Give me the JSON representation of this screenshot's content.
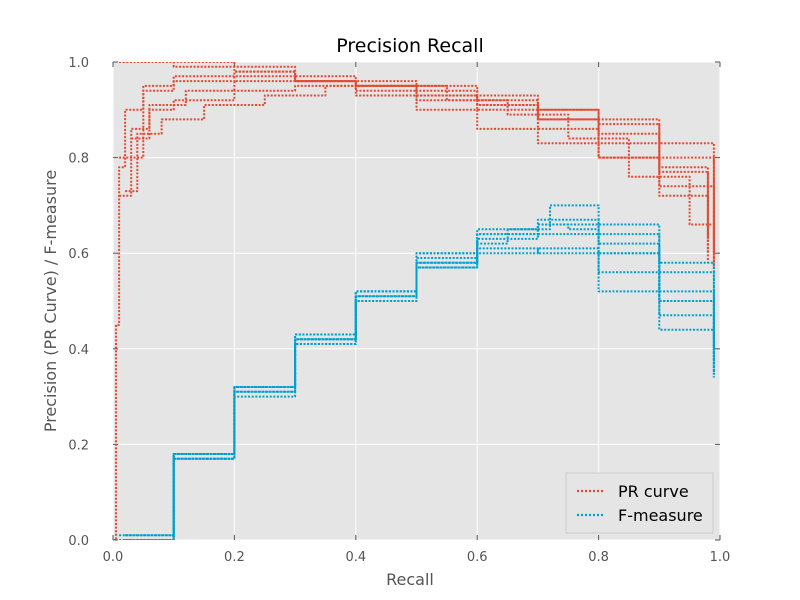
{
  "chart_data": {
    "type": "line",
    "title": "Precision Recall",
    "xlabel": "Recall",
    "ylabel": "Precision (PR Curve) / F-measure",
    "xlim": [
      0,
      1
    ],
    "ylim": [
      0,
      1
    ],
    "xticks": [
      "0.0",
      "0.2",
      "0.4",
      "0.6",
      "0.8",
      "1.0"
    ],
    "yticks": [
      "0.0",
      "0.2",
      "0.4",
      "0.6",
      "0.8",
      "1.0"
    ],
    "grid": true,
    "legend_position": "lower-right",
    "line_style": "dotted",
    "series": [
      {
        "name": "PR curve",
        "color": "#e24a33",
        "curves": [
          [
            [
              0.0,
              0.0
            ],
            [
              0.005,
              0.45
            ],
            [
              0.01,
              0.78
            ],
            [
              0.02,
              0.9
            ],
            [
              0.05,
              0.95
            ],
            [
              0.1,
              0.97
            ],
            [
              0.2,
              0.98
            ],
            [
              0.3,
              0.96
            ],
            [
              0.4,
              0.95
            ],
            [
              0.5,
              0.93
            ],
            [
              0.6,
              0.91
            ],
            [
              0.7,
              0.88
            ],
            [
              0.8,
              0.85
            ],
            [
              0.9,
              0.78
            ],
            [
              0.98,
              0.6
            ]
          ],
          [
            [
              0.01,
              1.0
            ],
            [
              0.05,
              1.0
            ],
            [
              0.1,
              0.99
            ],
            [
              0.2,
              0.98
            ],
            [
              0.3,
              0.97
            ],
            [
              0.4,
              0.95
            ],
            [
              0.5,
              0.93
            ],
            [
              0.6,
              0.9
            ],
            [
              0.7,
              0.86
            ],
            [
              0.8,
              0.8
            ],
            [
              0.9,
              0.72
            ],
            [
              0.98,
              0.58
            ]
          ],
          [
            [
              0.01,
              0.72
            ],
            [
              0.03,
              0.86
            ],
            [
              0.06,
              0.9
            ],
            [
              0.1,
              0.92
            ],
            [
              0.2,
              0.94
            ],
            [
              0.3,
              0.95
            ],
            [
              0.4,
              0.96
            ],
            [
              0.5,
              0.95
            ],
            [
              0.6,
              0.93
            ],
            [
              0.7,
              0.9
            ],
            [
              0.8,
              0.87
            ],
            [
              0.9,
              0.8
            ],
            [
              0.99,
              0.57
            ]
          ],
          [
            [
              0.02,
              0.73
            ],
            [
              0.04,
              0.85
            ],
            [
              0.08,
              0.88
            ],
            [
              0.15,
              0.91
            ],
            [
              0.25,
              0.93
            ],
            [
              0.35,
              0.95
            ],
            [
              0.45,
              0.95
            ],
            [
              0.55,
              0.92
            ],
            [
              0.65,
              0.89
            ],
            [
              0.75,
              0.84
            ],
            [
              0.85,
              0.76
            ],
            [
              0.95,
              0.66
            ],
            [
              0.99,
              0.56
            ]
          ],
          [
            [
              0.01,
              1.0
            ],
            [
              0.1,
              1.0
            ],
            [
              0.2,
              0.99
            ],
            [
              0.3,
              0.96
            ],
            [
              0.4,
              0.93
            ],
            [
              0.5,
              0.92
            ],
            [
              0.6,
              0.91
            ],
            [
              0.7,
              0.9
            ],
            [
              0.8,
              0.88
            ],
            [
              0.9,
              0.83
            ],
            [
              0.99,
              0.63
            ]
          ],
          [
            [
              0.03,
              0.84
            ],
            [
              0.06,
              0.91
            ],
            [
              0.12,
              0.94
            ],
            [
              0.2,
              0.96
            ],
            [
              0.3,
              0.96
            ],
            [
              0.4,
              0.94
            ],
            [
              0.5,
              0.9
            ],
            [
              0.6,
              0.86
            ],
            [
              0.7,
              0.83
            ],
            [
              0.8,
              0.8
            ],
            [
              0.9,
              0.74
            ],
            [
              0.99,
              0.6
            ]
          ],
          [
            [
              0.01,
              0.8
            ],
            [
              0.05,
              0.94
            ],
            [
              0.1,
              0.96
            ],
            [
              0.2,
              0.97
            ],
            [
              0.3,
              0.96
            ],
            [
              0.4,
              0.95
            ],
            [
              0.5,
              0.94
            ],
            [
              0.6,
              0.92
            ],
            [
              0.7,
              0.88
            ],
            [
              0.8,
              0.83
            ],
            [
              0.9,
              0.77
            ],
            [
              0.98,
              0.63
            ]
          ]
        ]
      },
      {
        "name": "F-measure",
        "color": "#00a0cc",
        "curves": [
          [
            [
              0.01,
              0.0
            ],
            [
              0.1,
              0.18
            ],
            [
              0.2,
              0.32
            ],
            [
              0.3,
              0.43
            ],
            [
              0.4,
              0.52
            ],
            [
              0.5,
              0.59
            ],
            [
              0.6,
              0.64
            ],
            [
              0.7,
              0.66
            ],
            [
              0.75,
              0.65
            ],
            [
              0.8,
              0.6
            ],
            [
              0.9,
              0.5
            ],
            [
              0.99,
              0.34
            ]
          ],
          [
            [
              0.02,
              0.0
            ],
            [
              0.1,
              0.17
            ],
            [
              0.2,
              0.31
            ],
            [
              0.3,
              0.41
            ],
            [
              0.4,
              0.5
            ],
            [
              0.5,
              0.57
            ],
            [
              0.6,
              0.6
            ],
            [
              0.7,
              0.61
            ],
            [
              0.8,
              0.56
            ],
            [
              0.9,
              0.47
            ],
            [
              0.99,
              0.36
            ]
          ],
          [
            [
              0.01,
              0.01
            ],
            [
              0.1,
              0.18
            ],
            [
              0.2,
              0.32
            ],
            [
              0.3,
              0.42
            ],
            [
              0.4,
              0.51
            ],
            [
              0.5,
              0.58
            ],
            [
              0.6,
              0.63
            ],
            [
              0.7,
              0.64
            ],
            [
              0.8,
              0.64
            ],
            [
              0.9,
              0.58
            ],
            [
              0.99,
              0.4
            ]
          ],
          [
            [
              0.02,
              0.0
            ],
            [
              0.1,
              0.17
            ],
            [
              0.2,
              0.3
            ],
            [
              0.3,
              0.41
            ],
            [
              0.4,
              0.5
            ],
            [
              0.5,
              0.58
            ],
            [
              0.6,
              0.62
            ],
            [
              0.65,
              0.65
            ],
            [
              0.72,
              0.7
            ],
            [
              0.8,
              0.6
            ],
            [
              0.9,
              0.5
            ],
            [
              0.99,
              0.34
            ]
          ],
          [
            [
              0.01,
              0.0
            ],
            [
              0.1,
              0.18
            ],
            [
              0.2,
              0.32
            ],
            [
              0.3,
              0.42
            ],
            [
              0.4,
              0.52
            ],
            [
              0.5,
              0.6
            ],
            [
              0.6,
              0.64
            ],
            [
              0.7,
              0.66
            ],
            [
              0.8,
              0.66
            ],
            [
              0.9,
              0.56
            ],
            [
              0.99,
              0.42
            ]
          ],
          [
            [
              0.02,
              0.01
            ],
            [
              0.1,
              0.17
            ],
            [
              0.2,
              0.31
            ],
            [
              0.3,
              0.43
            ],
            [
              0.4,
              0.51
            ],
            [
              0.5,
              0.57
            ],
            [
              0.6,
              0.61
            ],
            [
              0.7,
              0.6
            ],
            [
              0.8,
              0.52
            ],
            [
              0.9,
              0.44
            ],
            [
              0.99,
              0.35
            ]
          ],
          [
            [
              0.01,
              0.0
            ],
            [
              0.1,
              0.18
            ],
            [
              0.2,
              0.32
            ],
            [
              0.3,
              0.42
            ],
            [
              0.4,
              0.52
            ],
            [
              0.5,
              0.6
            ],
            [
              0.6,
              0.65
            ],
            [
              0.7,
              0.67
            ],
            [
              0.8,
              0.62
            ],
            [
              0.9,
              0.52
            ],
            [
              0.99,
              0.38
            ]
          ]
        ]
      }
    ]
  }
}
